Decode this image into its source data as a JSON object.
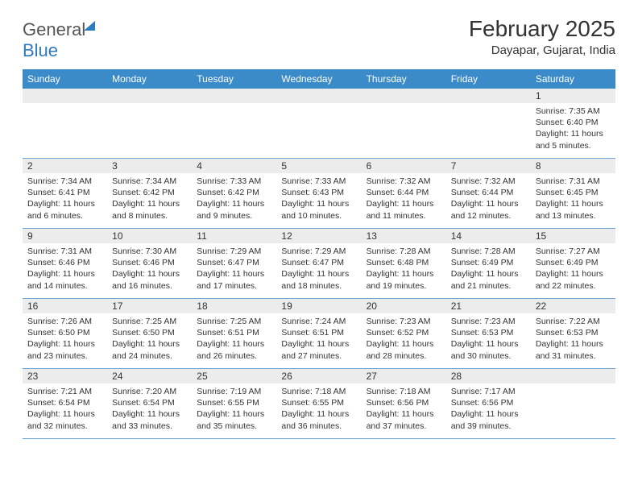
{
  "logo": {
    "part1": "General",
    "part2": "Blue"
  },
  "title": "February 2025",
  "location": "Dayapar, Gujarat, India",
  "colors": {
    "header_bg": "#3b8bc9",
    "header_text": "#ffffff",
    "daynum_bg": "#ececec",
    "row_border": "#6fa8d8",
    "logo_blue": "#2f7bbf",
    "text": "#333333",
    "background": "#ffffff"
  },
  "weekdays": [
    "Sunday",
    "Monday",
    "Tuesday",
    "Wednesday",
    "Thursday",
    "Friday",
    "Saturday"
  ],
  "weeks": [
    [
      {
        "n": "",
        "sr": "",
        "ss": "",
        "dl": ""
      },
      {
        "n": "",
        "sr": "",
        "ss": "",
        "dl": ""
      },
      {
        "n": "",
        "sr": "",
        "ss": "",
        "dl": ""
      },
      {
        "n": "",
        "sr": "",
        "ss": "",
        "dl": ""
      },
      {
        "n": "",
        "sr": "",
        "ss": "",
        "dl": ""
      },
      {
        "n": "",
        "sr": "",
        "ss": "",
        "dl": ""
      },
      {
        "n": "1",
        "sr": "Sunrise: 7:35 AM",
        "ss": "Sunset: 6:40 PM",
        "dl": "Daylight: 11 hours and 5 minutes."
      }
    ],
    [
      {
        "n": "2",
        "sr": "Sunrise: 7:34 AM",
        "ss": "Sunset: 6:41 PM",
        "dl": "Daylight: 11 hours and 6 minutes."
      },
      {
        "n": "3",
        "sr": "Sunrise: 7:34 AM",
        "ss": "Sunset: 6:42 PM",
        "dl": "Daylight: 11 hours and 8 minutes."
      },
      {
        "n": "4",
        "sr": "Sunrise: 7:33 AM",
        "ss": "Sunset: 6:42 PM",
        "dl": "Daylight: 11 hours and 9 minutes."
      },
      {
        "n": "5",
        "sr": "Sunrise: 7:33 AM",
        "ss": "Sunset: 6:43 PM",
        "dl": "Daylight: 11 hours and 10 minutes."
      },
      {
        "n": "6",
        "sr": "Sunrise: 7:32 AM",
        "ss": "Sunset: 6:44 PM",
        "dl": "Daylight: 11 hours and 11 minutes."
      },
      {
        "n": "7",
        "sr": "Sunrise: 7:32 AM",
        "ss": "Sunset: 6:44 PM",
        "dl": "Daylight: 11 hours and 12 minutes."
      },
      {
        "n": "8",
        "sr": "Sunrise: 7:31 AM",
        "ss": "Sunset: 6:45 PM",
        "dl": "Daylight: 11 hours and 13 minutes."
      }
    ],
    [
      {
        "n": "9",
        "sr": "Sunrise: 7:31 AM",
        "ss": "Sunset: 6:46 PM",
        "dl": "Daylight: 11 hours and 14 minutes."
      },
      {
        "n": "10",
        "sr": "Sunrise: 7:30 AM",
        "ss": "Sunset: 6:46 PM",
        "dl": "Daylight: 11 hours and 16 minutes."
      },
      {
        "n": "11",
        "sr": "Sunrise: 7:29 AM",
        "ss": "Sunset: 6:47 PM",
        "dl": "Daylight: 11 hours and 17 minutes."
      },
      {
        "n": "12",
        "sr": "Sunrise: 7:29 AM",
        "ss": "Sunset: 6:47 PM",
        "dl": "Daylight: 11 hours and 18 minutes."
      },
      {
        "n": "13",
        "sr": "Sunrise: 7:28 AM",
        "ss": "Sunset: 6:48 PM",
        "dl": "Daylight: 11 hours and 19 minutes."
      },
      {
        "n": "14",
        "sr": "Sunrise: 7:28 AM",
        "ss": "Sunset: 6:49 PM",
        "dl": "Daylight: 11 hours and 21 minutes."
      },
      {
        "n": "15",
        "sr": "Sunrise: 7:27 AM",
        "ss": "Sunset: 6:49 PM",
        "dl": "Daylight: 11 hours and 22 minutes."
      }
    ],
    [
      {
        "n": "16",
        "sr": "Sunrise: 7:26 AM",
        "ss": "Sunset: 6:50 PM",
        "dl": "Daylight: 11 hours and 23 minutes."
      },
      {
        "n": "17",
        "sr": "Sunrise: 7:25 AM",
        "ss": "Sunset: 6:50 PM",
        "dl": "Daylight: 11 hours and 24 minutes."
      },
      {
        "n": "18",
        "sr": "Sunrise: 7:25 AM",
        "ss": "Sunset: 6:51 PM",
        "dl": "Daylight: 11 hours and 26 minutes."
      },
      {
        "n": "19",
        "sr": "Sunrise: 7:24 AM",
        "ss": "Sunset: 6:51 PM",
        "dl": "Daylight: 11 hours and 27 minutes."
      },
      {
        "n": "20",
        "sr": "Sunrise: 7:23 AM",
        "ss": "Sunset: 6:52 PM",
        "dl": "Daylight: 11 hours and 28 minutes."
      },
      {
        "n": "21",
        "sr": "Sunrise: 7:23 AM",
        "ss": "Sunset: 6:53 PM",
        "dl": "Daylight: 11 hours and 30 minutes."
      },
      {
        "n": "22",
        "sr": "Sunrise: 7:22 AM",
        "ss": "Sunset: 6:53 PM",
        "dl": "Daylight: 11 hours and 31 minutes."
      }
    ],
    [
      {
        "n": "23",
        "sr": "Sunrise: 7:21 AM",
        "ss": "Sunset: 6:54 PM",
        "dl": "Daylight: 11 hours and 32 minutes."
      },
      {
        "n": "24",
        "sr": "Sunrise: 7:20 AM",
        "ss": "Sunset: 6:54 PM",
        "dl": "Daylight: 11 hours and 33 minutes."
      },
      {
        "n": "25",
        "sr": "Sunrise: 7:19 AM",
        "ss": "Sunset: 6:55 PM",
        "dl": "Daylight: 11 hours and 35 minutes."
      },
      {
        "n": "26",
        "sr": "Sunrise: 7:18 AM",
        "ss": "Sunset: 6:55 PM",
        "dl": "Daylight: 11 hours and 36 minutes."
      },
      {
        "n": "27",
        "sr": "Sunrise: 7:18 AM",
        "ss": "Sunset: 6:56 PM",
        "dl": "Daylight: 11 hours and 37 minutes."
      },
      {
        "n": "28",
        "sr": "Sunrise: 7:17 AM",
        "ss": "Sunset: 6:56 PM",
        "dl": "Daylight: 11 hours and 39 minutes."
      },
      {
        "n": "",
        "sr": "",
        "ss": "",
        "dl": ""
      }
    ]
  ]
}
